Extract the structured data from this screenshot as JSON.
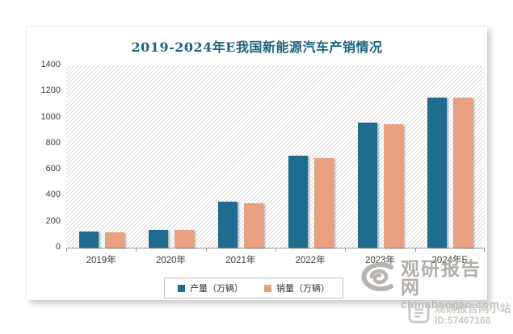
{
  "title": "2019-2024年E我国新能源汽车产销情况",
  "chart_data": {
    "type": "bar",
    "categories": [
      "2019年",
      "2020年",
      "2021年",
      "2022年",
      "2023年",
      "2024年E"
    ],
    "series": [
      {
        "name": "产量（万辆）",
        "color": "#1F6D8E",
        "values": [
          125,
          137,
          355,
          705,
          960,
          1155
        ]
      },
      {
        "name": "销量（万辆）",
        "color": "#E9A080",
        "values": [
          120,
          136,
          340,
          690,
          950,
          1150
        ]
      }
    ],
    "xlabel": "",
    "ylabel": "",
    "ylim": [
      0,
      1400
    ],
    "yticks": [
      0,
      200,
      400,
      600,
      800,
      1000,
      1200,
      1400
    ],
    "grid": false,
    "plot_background": "diagonal-hatch",
    "legend_position": "bottom"
  },
  "watermark": {
    "site_name": "观研报告网",
    "site_url": "chinabaogao.com",
    "badge_text": "观研报告网小站",
    "badge_id": "ID:57467168"
  },
  "colors": {
    "title": "#1D647F",
    "bar_production": "#1F6D8E",
    "bar_sales": "#E9A080",
    "axis_line": "#9B9B9B",
    "tick_text": "#3F3F3F",
    "watermark_gray": "#B7B3AE"
  }
}
